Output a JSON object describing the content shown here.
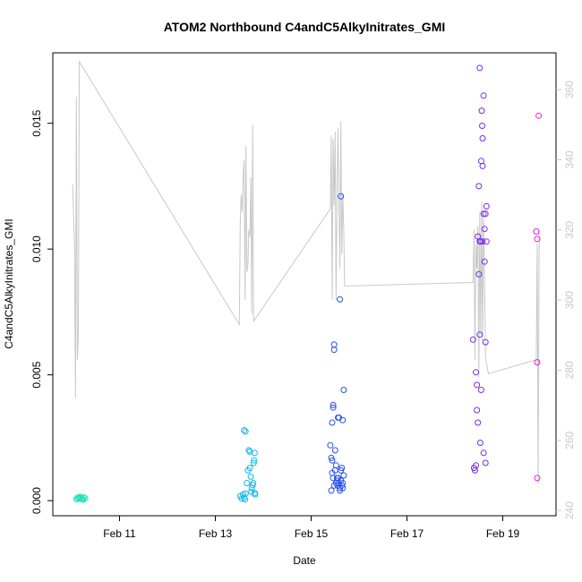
{
  "chart_data": {
    "type": "scatter",
    "title": "ATOM2 Northbound C4andC5AlkyInitrates_GMI",
    "xlabel": "Date",
    "ylabel": "C4andC5AlkyInitrates_GMI",
    "x_ticks": [
      {
        "day": 11,
        "label": "Feb 11"
      },
      {
        "day": 13,
        "label": "Feb 13"
      },
      {
        "day": 15,
        "label": "Feb 15"
      },
      {
        "day": 17,
        "label": "Feb 17"
      },
      {
        "day": 19,
        "label": "Feb 19"
      }
    ],
    "xlim": [
      9.9,
      19.9
    ],
    "y_ticks": [
      "0.000",
      "0.005",
      "0.010",
      "0.015"
    ],
    "y_tick_values": [
      0.0,
      0.005,
      0.01,
      0.015
    ],
    "ylim": [
      -0.0006,
      0.0178
    ],
    "y2_ticks": [
      "240",
      "260",
      "280",
      "300",
      "320",
      "340",
      "360"
    ],
    "y2_tick_values": [
      240,
      260,
      280,
      300,
      320,
      340,
      360
    ],
    "y2lim": [
      238.5,
      370.5
    ],
    "colors": {
      "line": "#c8c8c8",
      "axis": "#000000",
      "right_axis": "#c8c8c8"
    },
    "series": [
      {
        "color": "#20e0b8",
        "points": [
          [
            10.12,
            0.00012
          ],
          [
            10.15,
            8e-05
          ],
          [
            10.18,
            0.00015
          ],
          [
            10.2,
            0.0001
          ],
          [
            10.22,
            5e-05
          ],
          [
            10.25,
            0.00013
          ],
          [
            10.28,
            9e-05
          ],
          [
            10.1,
            6e-05
          ],
          [
            10.16,
            0.00011
          ],
          [
            10.24,
            4e-05
          ]
        ]
      },
      {
        "color": "#10b8f0",
        "points": [
          [
            13.52,
            0.00018
          ],
          [
            13.55,
            8e-05
          ],
          [
            13.58,
            0.00025
          ],
          [
            13.6,
            0.00012
          ],
          [
            13.62,
            5e-05
          ],
          [
            13.63,
            0.00028
          ],
          [
            13.6,
            0.0028
          ],
          [
            13.63,
            0.00275
          ],
          [
            13.66,
            0.0007
          ],
          [
            13.68,
            0.0012
          ],
          [
            13.7,
            0.002
          ],
          [
            13.72,
            0.00195
          ],
          [
            13.72,
            0.0013
          ],
          [
            13.74,
            0.00095
          ],
          [
            13.76,
            0.0005
          ],
          [
            13.78,
            0.00062
          ],
          [
            13.79,
            0.0007
          ],
          [
            13.8,
            0.0015
          ],
          [
            13.81,
            0.0016
          ],
          [
            13.82,
            0.0019
          ],
          [
            13.82,
            0.0003
          ],
          [
            13.83,
            0.00025
          ],
          [
            13.75,
            0.00035
          ]
        ]
      },
      {
        "color": "#2a50e8",
        "points": [
          [
            15.4,
            0.0022
          ],
          [
            15.42,
            0.0017
          ],
          [
            15.44,
            0.0016
          ],
          [
            15.44,
            0.0031
          ],
          [
            15.46,
            0.0037
          ],
          [
            15.46,
            0.0038
          ],
          [
            15.48,
            0.0062
          ],
          [
            15.48,
            0.006
          ],
          [
            15.5,
            0.0012
          ],
          [
            15.5,
            0.002
          ],
          [
            15.52,
            0.0014
          ],
          [
            15.54,
            0.0008
          ],
          [
            15.55,
            0.0006
          ],
          [
            15.56,
            0.0033
          ],
          [
            15.58,
            0.0033
          ],
          [
            15.6,
            0.008
          ],
          [
            15.62,
            0.0121
          ],
          [
            15.62,
            0.0012
          ],
          [
            15.64,
            0.0013
          ],
          [
            15.66,
            0.0032
          ],
          [
            15.68,
            0.0044
          ],
          [
            15.42,
            0.0004
          ],
          [
            15.46,
            0.0009
          ],
          [
            15.48,
            0.0006
          ],
          [
            15.52,
            0.0007
          ],
          [
            15.56,
            0.0009
          ],
          [
            15.58,
            0.0007
          ],
          [
            15.6,
            0.0005
          ],
          [
            15.62,
            0.0008
          ],
          [
            15.64,
            0.0006
          ],
          [
            15.66,
            0.0005
          ],
          [
            15.68,
            0.001
          ],
          [
            15.44,
            0.0011
          ],
          [
            15.54,
            0.0009
          ],
          [
            15.6,
            0.0004
          ],
          [
            15.66,
            0.0007
          ]
        ]
      },
      {
        "color": "#7a2ae8",
        "points": [
          [
            18.38,
            0.0064
          ],
          [
            18.4,
            0.0013
          ],
          [
            18.42,
            0.0012
          ],
          [
            18.44,
            0.0014
          ],
          [
            18.44,
            0.0051
          ],
          [
            18.46,
            0.0046
          ],
          [
            18.46,
            0.0036
          ],
          [
            18.48,
            0.0105
          ],
          [
            18.48,
            0.0031
          ],
          [
            18.5,
            0.0125
          ],
          [
            18.5,
            0.009
          ],
          [
            18.52,
            0.0066
          ],
          [
            18.52,
            0.0103
          ],
          [
            18.52,
            0.0172
          ],
          [
            18.53,
            0.0023
          ],
          [
            18.54,
            0.0103
          ],
          [
            18.55,
            0.0135
          ],
          [
            18.55,
            0.0044
          ],
          [
            18.56,
            0.0155
          ],
          [
            18.57,
            0.0149
          ],
          [
            18.58,
            0.0144
          ],
          [
            18.58,
            0.0133
          ],
          [
            18.58,
            0.0103
          ],
          [
            18.6,
            0.0114
          ],
          [
            18.6,
            0.0161
          ],
          [
            18.6,
            0.0019
          ],
          [
            18.62,
            0.0108
          ],
          [
            18.62,
            0.0095
          ],
          [
            18.64,
            0.0114
          ],
          [
            18.64,
            0.0063
          ],
          [
            18.64,
            0.0015
          ],
          [
            18.66,
            0.0117
          ],
          [
            18.66,
            0.0103
          ]
        ]
      },
      {
        "color": "#e020e8",
        "points": [
          [
            19.7,
            0.0107
          ],
          [
            19.72,
            0.0104
          ],
          [
            19.72,
            0.0055
          ],
          [
            19.72,
            0.0009
          ],
          [
            19.75,
            0.0153
          ]
        ]
      }
    ],
    "line": [
      [
        10.02,
        333
      ],
      [
        10.06,
        316
      ],
      [
        10.08,
        272
      ],
      [
        10.1,
        358
      ],
      [
        10.12,
        283
      ],
      [
        10.14,
        290
      ],
      [
        10.16,
        368
      ],
      [
        13.5,
        293
      ],
      [
        13.52,
        322
      ],
      [
        13.54,
        330
      ],
      [
        13.56,
        325
      ],
      [
        13.58,
        335
      ],
      [
        13.6,
        340
      ],
      [
        13.62,
        300
      ],
      [
        13.64,
        344
      ],
      [
        13.66,
        308
      ],
      [
        13.68,
        310
      ],
      [
        13.7,
        320
      ],
      [
        13.72,
        318
      ],
      [
        13.74,
        335
      ],
      [
        13.76,
        296
      ],
      [
        13.78,
        350
      ],
      [
        13.8,
        294
      ],
      [
        15.4,
        326
      ],
      [
        15.42,
        347
      ],
      [
        15.44,
        300
      ],
      [
        15.46,
        346
      ],
      [
        15.48,
        327
      ],
      [
        15.5,
        348
      ],
      [
        15.52,
        300
      ],
      [
        15.54,
        331
      ],
      [
        15.56,
        349
      ],
      [
        15.58,
        329
      ],
      [
        15.6,
        309
      ],
      [
        15.62,
        351
      ],
      [
        15.64,
        313
      ],
      [
        15.66,
        330
      ],
      [
        15.68,
        320
      ],
      [
        15.7,
        304
      ],
      [
        18.38,
        305
      ],
      [
        18.4,
        320
      ],
      [
        18.42,
        283
      ],
      [
        18.44,
        316
      ],
      [
        18.46,
        309
      ],
      [
        18.48,
        321
      ],
      [
        18.5,
        278
      ],
      [
        18.52,
        325
      ],
      [
        18.54,
        290
      ],
      [
        18.56,
        328
      ],
      [
        18.58,
        288
      ],
      [
        18.6,
        324
      ],
      [
        18.62,
        306
      ],
      [
        18.64,
        284
      ],
      [
        18.66,
        282
      ],
      [
        18.7,
        279
      ],
      [
        19.7,
        283
      ],
      [
        19.72,
        316
      ],
      [
        19.74,
        248
      ],
      [
        19.76,
        320
      ]
    ]
  }
}
